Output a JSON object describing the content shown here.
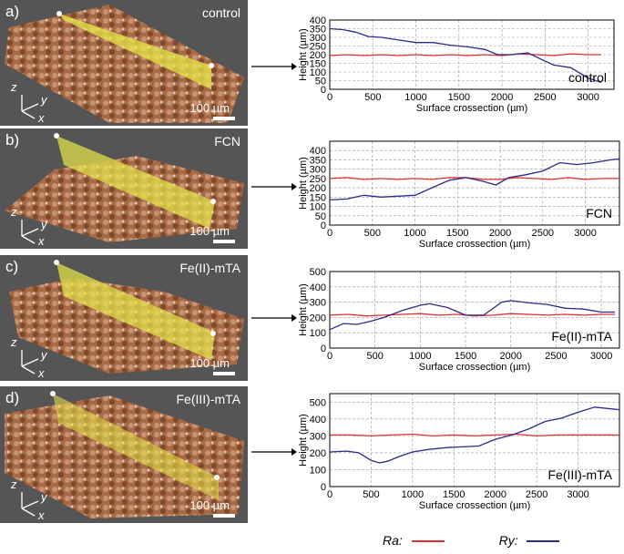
{
  "panels": [
    {
      "label": "a)",
      "name": "control",
      "scale": "100 µm"
    },
    {
      "label": "b)",
      "name": "FCN",
      "scale": "100 µm"
    },
    {
      "label": "c)",
      "name": "Fe(II)-mTA",
      "scale": "100 µm"
    },
    {
      "label": "d)",
      "name": "Fe(III)-mTA",
      "scale": "100 µm"
    }
  ],
  "axes_triad": {
    "z": "z",
    "y": "y",
    "x": "x"
  },
  "legend": {
    "ra_label": "Ra:",
    "ry_label": "Ry:",
    "ra_color": "#e03030",
    "ry_color": "#2b2b8c"
  },
  "chart_data": [
    {
      "type": "line",
      "annotation": "control",
      "xlabel": "Surface crossection (µm)",
      "ylabel": "Height (µm)",
      "xlim": [
        0,
        3300
      ],
      "ylim": [
        0,
        400
      ],
      "xticks": [
        0,
        500,
        1000,
        1500,
        2000,
        2500,
        3000
      ],
      "yticks": [
        0,
        50,
        100,
        150,
        200,
        250,
        300,
        350,
        400
      ],
      "series": [
        {
          "name": "Ra",
          "color": "#e03030",
          "x": [
            0,
            200,
            400,
            600,
            800,
            1000,
            1200,
            1400,
            1600,
            1800,
            2000,
            2200,
            2400,
            2600,
            2800,
            3000,
            3150
          ],
          "y": [
            195,
            200,
            195,
            200,
            195,
            200,
            195,
            200,
            195,
            200,
            195,
            205,
            200,
            195,
            205,
            200,
            200
          ]
        },
        {
          "name": "Ry",
          "color": "#2b2b8c",
          "x": [
            0,
            150,
            300,
            450,
            600,
            800,
            1000,
            1200,
            1400,
            1600,
            1800,
            1950,
            2100,
            2300,
            2450,
            2600,
            2800,
            3000,
            3150
          ],
          "y": [
            350,
            345,
            330,
            305,
            300,
            285,
            270,
            270,
            255,
            245,
            230,
            200,
            200,
            210,
            175,
            140,
            125,
            65,
            40
          ]
        }
      ]
    },
    {
      "type": "line",
      "annotation": "FCN",
      "xlabel": "Surface crossection (µm)",
      "ylabel": "Height (µm)",
      "xlim": [
        0,
        3400
      ],
      "ylim": [
        0,
        450
      ],
      "xticks": [
        0,
        500,
        1000,
        1500,
        2000,
        2500,
        3000
      ],
      "yticks": [
        0,
        50,
        100,
        150,
        200,
        250,
        300,
        350,
        400
      ],
      "series": [
        {
          "name": "Ra",
          "color": "#e03030",
          "x": [
            0,
            200,
            400,
            600,
            800,
            1000,
            1200,
            1400,
            1600,
            1800,
            2000,
            2200,
            2400,
            2600,
            2800,
            3000,
            3200,
            3400
          ],
          "y": [
            250,
            255,
            245,
            250,
            245,
            250,
            245,
            255,
            255,
            245,
            245,
            255,
            250,
            245,
            255,
            245,
            250,
            250
          ]
        },
        {
          "name": "Ry",
          "color": "#2b2b8c",
          "x": [
            0,
            200,
            400,
            600,
            800,
            1000,
            1200,
            1400,
            1600,
            1800,
            1950,
            2100,
            2300,
            2500,
            2700,
            2900,
            3100,
            3300,
            3400
          ],
          "y": [
            135,
            140,
            160,
            150,
            155,
            160,
            200,
            240,
            255,
            235,
            215,
            255,
            270,
            290,
            335,
            325,
            335,
            350,
            355
          ]
        }
      ]
    },
    {
      "type": "line",
      "annotation": "Fe(II)-mTA",
      "xlabel": "Surface crossection (µm)",
      "ylabel": "Height (µm)",
      "xlim": [
        0,
        3200
      ],
      "ylim": [
        0,
        500
      ],
      "xticks": [
        0,
        500,
        1000,
        1500,
        2000,
        2500,
        3000
      ],
      "yticks": [
        0,
        100,
        200,
        300,
        400,
        500
      ],
      "series": [
        {
          "name": "Ra",
          "color": "#e03030",
          "x": [
            0,
            200,
            400,
            600,
            800,
            1000,
            1200,
            1400,
            1600,
            1800,
            2000,
            2200,
            2400,
            2600,
            2800,
            3000,
            3150
          ],
          "y": [
            215,
            220,
            210,
            215,
            220,
            225,
            215,
            220,
            210,
            215,
            225,
            220,
            215,
            220,
            215,
            220,
            220
          ]
        },
        {
          "name": "Ry",
          "color": "#2b2b8c",
          "x": [
            0,
            150,
            300,
            450,
            600,
            800,
            1000,
            1100,
            1300,
            1500,
            1700,
            1900,
            2000,
            2200,
            2400,
            2600,
            2800,
            3000,
            3150
          ],
          "y": [
            120,
            160,
            155,
            175,
            200,
            245,
            280,
            290,
            265,
            215,
            215,
            300,
            310,
            295,
            285,
            260,
            255,
            235,
            235
          ]
        }
      ]
    },
    {
      "type": "line",
      "annotation": "Fe(III)-mTA",
      "xlabel": "Surface crossection (µm)",
      "ylabel": "Height (µm)",
      "xlim": [
        0,
        3500
      ],
      "ylim": [
        0,
        550
      ],
      "xticks": [
        0,
        500,
        1000,
        1500,
        2000,
        2500,
        3000
      ],
      "yticks": [
        0,
        100,
        200,
        300,
        400,
        500
      ],
      "series": [
        {
          "name": "Ra",
          "color": "#e03030",
          "x": [
            0,
            250,
            500,
            750,
            1000,
            1250,
            1500,
            1750,
            2000,
            2250,
            2500,
            2750,
            3000,
            3250,
            3500
          ],
          "y": [
            305,
            305,
            300,
            305,
            310,
            300,
            305,
            300,
            305,
            310,
            300,
            305,
            305,
            305,
            305
          ]
        },
        {
          "name": "Ry",
          "color": "#2b2b8c",
          "x": [
            0,
            200,
            350,
            500,
            600,
            700,
            850,
            1000,
            1200,
            1400,
            1600,
            1800,
            2000,
            2200,
            2400,
            2600,
            2800,
            3000,
            3200,
            3400,
            3500
          ],
          "y": [
            205,
            210,
            200,
            155,
            140,
            150,
            180,
            205,
            220,
            230,
            235,
            240,
            280,
            305,
            340,
            385,
            405,
            440,
            470,
            460,
            455
          ]
        }
      ]
    }
  ]
}
